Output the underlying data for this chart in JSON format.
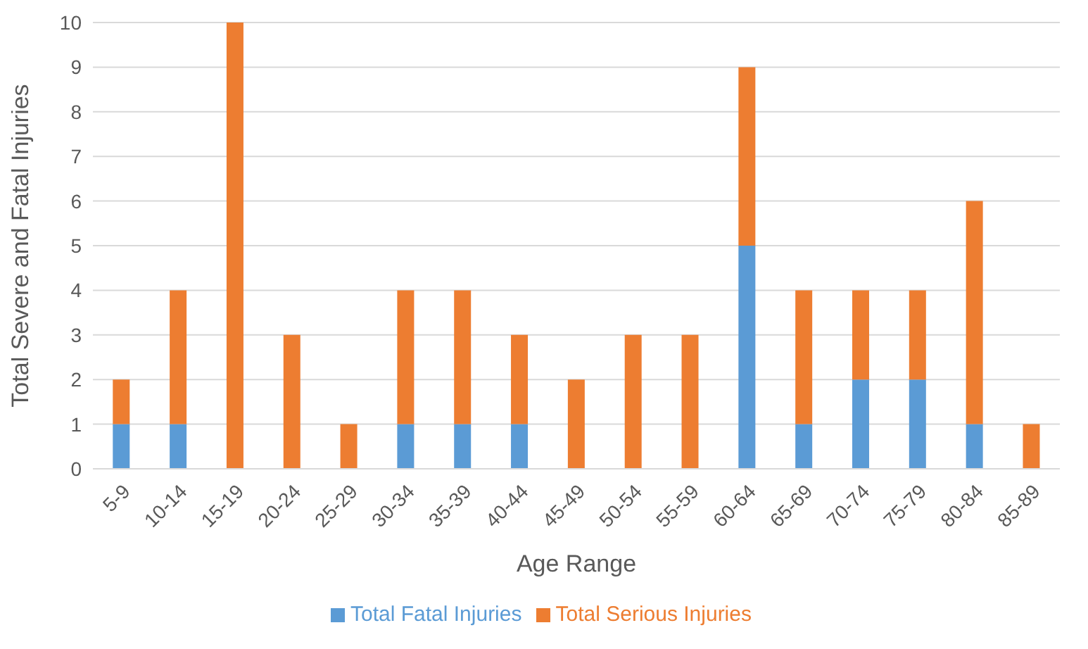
{
  "chart_data": {
    "type": "bar",
    "stacked": true,
    "xlabel": "Age Range",
    "ylabel": "Total Severe and Fatal Injuries",
    "categories": [
      "5-9",
      "10-14",
      "15-19",
      "20-24",
      "25-29",
      "30-34",
      "35-39",
      "40-44",
      "45-49",
      "50-54",
      "55-59",
      "60-64",
      "65-69",
      "70-74",
      "75-79",
      "80-84",
      "85-89"
    ],
    "series": [
      {
        "name": "Total Fatal Injuries",
        "color": "#5b9bd5",
        "values": [
          1,
          1,
          0,
          0,
          0,
          1,
          1,
          1,
          0,
          0,
          0,
          5,
          1,
          2,
          2,
          1,
          0
        ]
      },
      {
        "name": "Total Serious Injuries",
        "color": "#ed7d31",
        "values": [
          1,
          3,
          10,
          3,
          1,
          3,
          3,
          2,
          2,
          3,
          3,
          4,
          3,
          2,
          2,
          5,
          1
        ]
      }
    ],
    "ylim": [
      0,
      10
    ],
    "yticks": [
      0,
      1,
      2,
      3,
      4,
      5,
      6,
      7,
      8,
      9,
      10
    ],
    "grid": "y",
    "legend": "bottom"
  }
}
